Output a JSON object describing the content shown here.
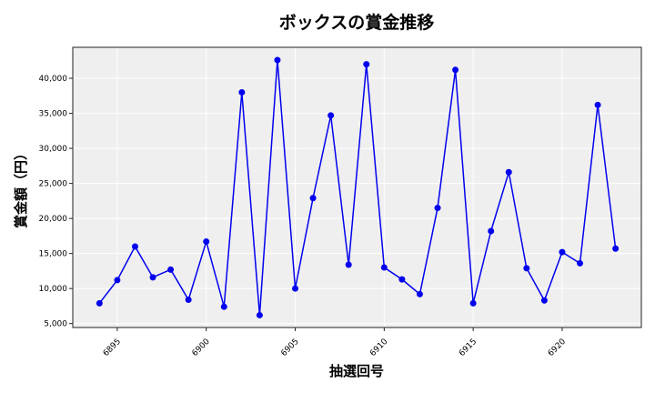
{
  "chart_data": {
    "type": "line",
    "title": "ボックスの賞金推移",
    "xlabel": "抽選回号",
    "ylabel": "賞金額（円）",
    "x": [
      6894,
      6895,
      6896,
      6897,
      6898,
      6899,
      6900,
      6901,
      6902,
      6903,
      6904,
      6905,
      6906,
      6907,
      6908,
      6909,
      6910,
      6911,
      6912,
      6913,
      6914,
      6915,
      6916,
      6917,
      6918,
      6919,
      6920,
      6921,
      6922,
      6923
    ],
    "series": [
      {
        "name": "賞金額",
        "color": "#0000ee",
        "values": [
          7900,
          11200,
          16000,
          11600,
          12700,
          8400,
          16700,
          7400,
          38000,
          6200,
          42600,
          10000,
          22900,
          34700,
          13400,
          42000,
          13000,
          11300,
          9200,
          21500,
          41200,
          7900,
          18200,
          26600,
          12900,
          8300,
          15200,
          13600,
          36200,
          15700
        ]
      }
    ],
    "xticks": [
      6895,
      6900,
      6905,
      6910,
      6915,
      6920
    ],
    "xtick_labels": [
      "6895",
      "6900",
      "6905",
      "6910",
      "6915",
      "6920"
    ],
    "yticks": [
      5000,
      10000,
      15000,
      20000,
      25000,
      30000,
      35000,
      40000
    ],
    "ytick_labels": [
      "5,000",
      "10,000",
      "15,000",
      "20,000",
      "25,000",
      "30,000",
      "35,000",
      "40,000"
    ],
    "xlim": [
      6892.5,
      6924.45
    ],
    "ylim": [
      4440,
      44420
    ],
    "grid": true,
    "background": "#efefef"
  }
}
